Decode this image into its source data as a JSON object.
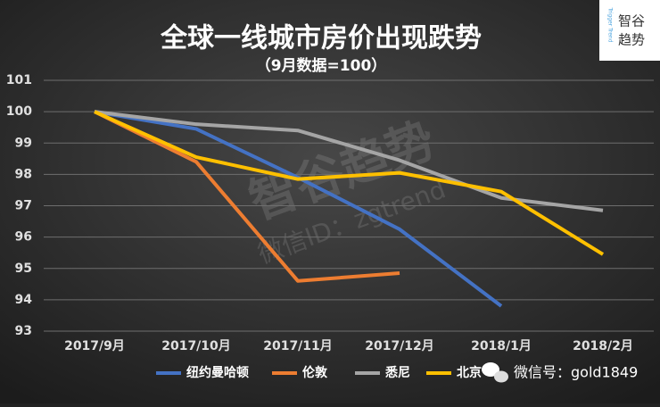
{
  "chart_data": {
    "type": "line",
    "title": "全球一线城市房价出现跌势",
    "subtitle": "（9月数据=100）",
    "categories": [
      "2017/9月",
      "2017/10月",
      "2017/11月",
      "2017/12月",
      "2018/1月",
      "2018/2月"
    ],
    "series": [
      {
        "name": "纽约曼哈顿",
        "color": "#4472c4",
        "values": [
          100,
          99.45,
          97.9,
          96.25,
          93.8,
          null
        ]
      },
      {
        "name": "伦敦",
        "color": "#ed7d31",
        "values": [
          100,
          98.4,
          94.6,
          94.85,
          null,
          null
        ]
      },
      {
        "name": "悉尼",
        "color": "#a5a5a5",
        "values": [
          100,
          99.6,
          99.4,
          98.45,
          97.25,
          96.85
        ]
      },
      {
        "name": "北京",
        "color": "#ffc000",
        "values": [
          100,
          98.55,
          97.85,
          98.05,
          97.45,
          95.45
        ]
      }
    ],
    "ylim": [
      93,
      101
    ],
    "yticks": [
      93,
      94,
      95,
      96,
      97,
      98,
      99,
      100,
      101
    ],
    "grid": true,
    "legend": "bottom",
    "watermark": [
      "智谷趋势",
      "微信ID：zgtrend"
    ],
    "credit": "微信号：gold1849"
  },
  "logo": {
    "brand": "Trigger Trend",
    "lines": [
      "智谷",
      "趋势"
    ]
  }
}
